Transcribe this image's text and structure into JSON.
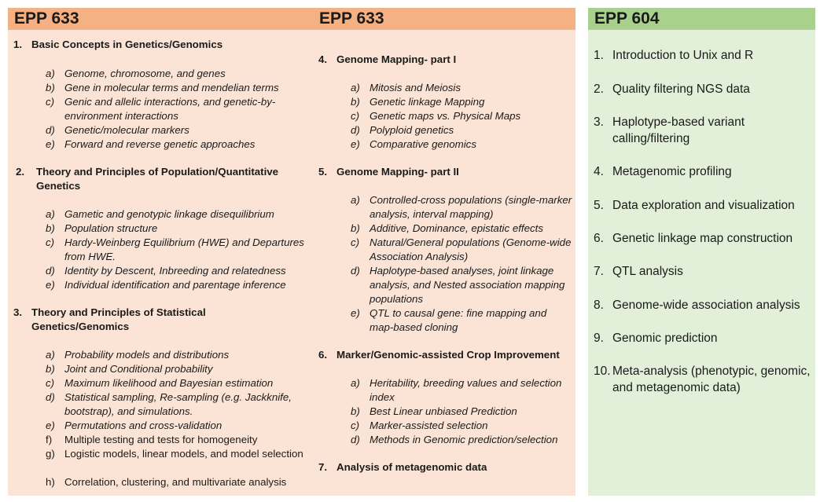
{
  "epp633": {
    "title_left": "EPP 633",
    "title_right": "EPP 633",
    "sections": [
      {
        "num": "1.",
        "title": "Basic Concepts in Genetics/Genomics",
        "items": [
          {
            "l": "a)",
            "t": "Genome, chromosome, and genes"
          },
          {
            "l": "b)",
            "t": "Gene in molecular terms and mendelian terms"
          },
          {
            "l": "c)",
            "t": "Genic and allelic interactions, and genetic-by-environment interactions"
          },
          {
            "l": "d)",
            "t": "Genetic/molecular markers"
          },
          {
            "l": "e)",
            "t": "Forward and reverse genetic approaches"
          }
        ]
      },
      {
        "num": "2.",
        "title": "Theory and Principles of Population/Quantitative Genetics",
        "items": [
          {
            "l": "a)",
            "t": "Gametic and genotypic linkage disequilibrium"
          },
          {
            "l": "b)",
            "t": "Population structure"
          },
          {
            "l": "c)",
            "t": "Hardy-Weinberg Equilibrium (HWE) and Departures from HWE."
          },
          {
            "l": "d)",
            "t": "Identity by Descent, Inbreeding and relatedness"
          },
          {
            "l": "e)",
            "t": "Individual identification and parentage inference"
          }
        ]
      },
      {
        "num": "3.",
        "title": "Theory and Principles of Statistical Genetics/Genomics",
        "items": [
          {
            "l": "a)",
            "t": "Probability models and distributions"
          },
          {
            "l": "b)",
            "t": "Joint and Conditional probability"
          },
          {
            "l": "c)",
            "t": "Maximum likelihood and Bayesian estimation"
          },
          {
            "l": "d)",
            "t": "Statistical sampling, Re-sampling (e.g. Jackknife, bootstrap), and simulations."
          },
          {
            "l": "e)",
            "t": "Permutations and cross-validation"
          },
          {
            "l": "f)",
            "t": "Multiple testing and tests for homogeneity"
          },
          {
            "l": "g)",
            "t": "Logistic models, linear models, and model selection"
          },
          {
            "l": "h)",
            "t": "Correlation, clustering, and multivariate analysis"
          }
        ]
      },
      {
        "num": "4.",
        "title": "Genome Mapping- part I",
        "items": [
          {
            "l": "a)",
            "t": "Mitosis and Meiosis"
          },
          {
            "l": "b)",
            "t": "Genetic linkage Mapping"
          },
          {
            "l": "c)",
            "t": "Genetic maps vs. Physical Maps"
          },
          {
            "l": "d)",
            "t": "Polyploid genetics"
          },
          {
            "l": "e)",
            "t": "Comparative genomics"
          }
        ]
      },
      {
        "num": "5.",
        "title": "Genome Mapping- part II",
        "items": [
          {
            "l": "a)",
            "t": "Controlled-cross populations (single-marker analysis, interval mapping)"
          },
          {
            "l": "b)",
            "t": "Additive, Dominance, epistatic effects"
          },
          {
            "l": "c)",
            "t": "Natural/General populations (Genome-wide Association Analysis)"
          },
          {
            "l": "d)",
            "t": "Haplotype-based analyses, joint linkage analysis, and Nested association mapping populations"
          },
          {
            "l": "e)",
            "t": "QTL to causal gene: fine mapping and map-based cloning"
          }
        ]
      },
      {
        "num": "6.",
        "title": "Marker/Genomic-assisted Crop Improvement",
        "items": [
          {
            "l": "a)",
            "t": "Heritability, breeding values and selection index"
          },
          {
            "l": "b)",
            "t": "Best Linear unbiased Prediction"
          },
          {
            "l": "c)",
            "t": "Marker-assisted selection"
          },
          {
            "l": "d)",
            "t": "Methods in Genomic prediction/selection"
          }
        ]
      },
      {
        "num": "7.",
        "title": "Analysis of metagenomic data",
        "items": []
      }
    ]
  },
  "epp604": {
    "title": "EPP 604",
    "items": [
      {
        "n": "1.",
        "t": "Introduction to Unix and R"
      },
      {
        "n": "2.",
        "t": "Quality filtering NGS data"
      },
      {
        "n": "3.",
        "t": "Haplotype-based variant calling/filtering"
      },
      {
        "n": "4.",
        "t": "Metagenomic profiling"
      },
      {
        "n": "5.",
        "t": "Data exploration and visualization"
      },
      {
        "n": "6.",
        "t": "Genetic linkage map construction"
      },
      {
        "n": "7.",
        "t": "QTL analysis"
      },
      {
        "n": "8.",
        "t": "Genome-wide association analysis"
      },
      {
        "n": "9.",
        "t": "Genomic prediction"
      },
      {
        "n": "10.",
        "t": "Meta-analysis (phenotypic, genomic, and metagenomic data)"
      }
    ]
  }
}
